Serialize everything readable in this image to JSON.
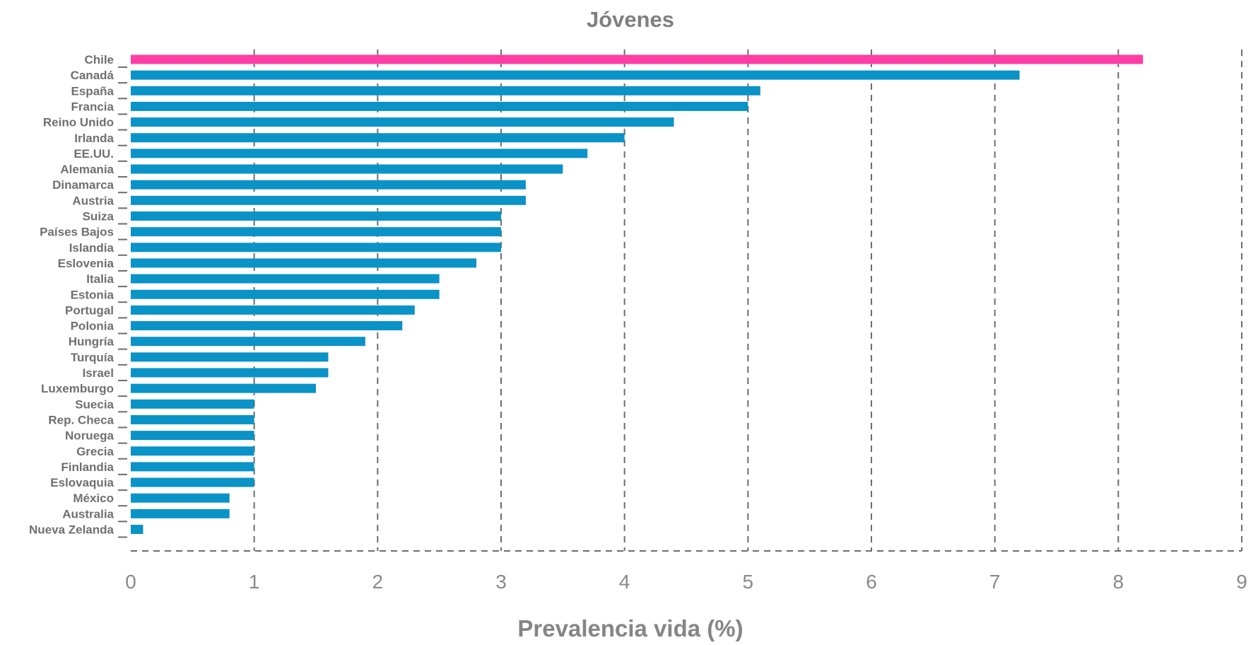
{
  "chart_data": {
    "type": "bar",
    "orientation": "horizontal",
    "title": "Jóvenes",
    "xlabel": "Prevalencia vida (%)",
    "ylabel": "",
    "xlim": [
      0,
      9
    ],
    "x_ticks": [
      0,
      1,
      2,
      3,
      4,
      5,
      6,
      7,
      8,
      9
    ],
    "grid": "vertical dashed",
    "legend": "none",
    "colors": {
      "highlight": "#ff3ea5",
      "default": "#0a93c7",
      "grid": "#6d6d6d",
      "text": "#7f7f7f"
    },
    "highlight_category": "Chile",
    "categories": [
      "Chile",
      "Canadá",
      "España",
      "Francia",
      "Reino Unido",
      "Irlanda",
      "EE.UU.",
      "Alemania",
      "Dinamarca",
      "Austria",
      "Suiza",
      "Países Bajos",
      "Islandia",
      "Eslovenia",
      "Italia",
      "Estonia",
      "Portugal",
      "Polonia",
      "Hungría",
      "Turquía",
      "Israel",
      "Luxemburgo",
      "Suecia",
      "Rep. Checa",
      "Noruega",
      "Grecia",
      "Finlandia",
      "Eslovaquia",
      "México",
      "Australia",
      "Nueva Zelanda"
    ],
    "values": [
      8.2,
      7.2,
      5.1,
      5.0,
      4.4,
      4.0,
      3.7,
      3.5,
      3.2,
      3.2,
      3.0,
      3.0,
      3.0,
      2.8,
      2.5,
      2.5,
      2.3,
      2.2,
      1.9,
      1.6,
      1.6,
      1.5,
      1.0,
      1.0,
      1.0,
      1.0,
      1.0,
      1.0,
      0.8,
      0.8,
      0.1
    ]
  }
}
